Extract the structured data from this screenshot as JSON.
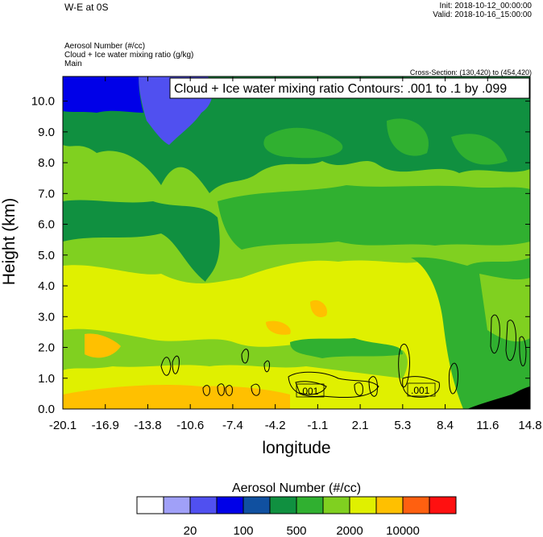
{
  "header": {
    "title": "W-E at 0S",
    "init": "Init: 2018-10-12_00:00:00",
    "valid": "Valid: 2018-10-16_15:00:00",
    "field_lines": [
      "Aerosol Number   (#/cc)",
      "Cloud + Ice water mixing ratio   (g/kg)",
      "Main"
    ],
    "cross_section": "Cross-Section: (130,420) to (454,420)"
  },
  "chart_data": {
    "type": "heatmap",
    "title": "Cloud + Ice water mixing ratio Contours: .001 to .1 by .099",
    "xlabel": "longitude",
    "ylabel": "Height (km)",
    "x_ticks": [
      "-20.1",
      "-16.9",
      "-13.8",
      "-10.6",
      "-7.4",
      "-4.2",
      "-1.1",
      "2.1",
      "5.3",
      "8.4",
      "11.6",
      "14.8"
    ],
    "y_ticks": [
      "0.0",
      "1.0",
      "2.0",
      "3.0",
      "4.0",
      "5.0",
      "6.0",
      "7.0",
      "8.0",
      "9.0",
      "10.0"
    ],
    "xlim": [
      -20.1,
      14.8
    ],
    "ylim": [
      0,
      10.8
    ],
    "contour_labels": [
      ".001",
      ".001"
    ],
    "colorbar": {
      "title": "Aerosol Number  (#/cc)",
      "colors": [
        "#ffffff",
        "#a0a0f8",
        "#5050f0",
        "#0000e8",
        "#1050a0",
        "#109040",
        "#30b030",
        "#80d020",
        "#e0f000",
        "#ffc000",
        "#ff6010",
        "#ff1010"
      ],
      "labels": [
        "20",
        "100",
        "500",
        "2000",
        "10000"
      ]
    }
  }
}
